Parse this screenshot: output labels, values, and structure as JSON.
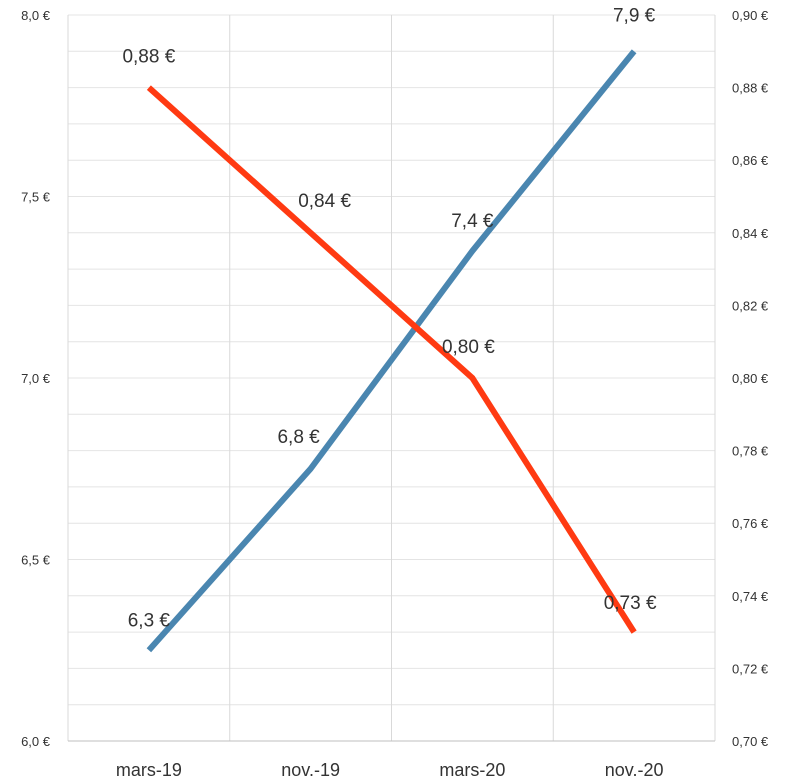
{
  "chart_data": {
    "type": "line",
    "title": "",
    "xlabel": "",
    "ylabel": "",
    "categories": [
      "mars-19",
      "nov.-19",
      "mars-20",
      "nov.-20"
    ],
    "y_left": {
      "range": [
        6.0,
        8.0
      ],
      "ticks": [
        6.0,
        6.5,
        7.0,
        7.5,
        8.0
      ],
      "tick_labels": [
        "6,0 €",
        "6,5 €",
        "7,0 €",
        "7,5 €",
        "8,0 €"
      ]
    },
    "y_right": {
      "range": [
        0.7,
        0.9
      ],
      "ticks": [
        0.7,
        0.72,
        0.74,
        0.76,
        0.78,
        0.8,
        0.82,
        0.84,
        0.86,
        0.88,
        0.9
      ],
      "tick_labels": [
        "0,70 €",
        "0,72 €",
        "0,74 €",
        "0,76 €",
        "0,78 €",
        "0,80 €",
        "0,82 €",
        "0,84 €",
        "0,86 €",
        "0,88 €",
        "0,90 €"
      ]
    },
    "series": [
      {
        "axis": "left",
        "color": "#4a86b0",
        "values": [
          6.25,
          6.75,
          7.35,
          7.9
        ],
        "labels": [
          "6,3 €",
          "6,8 €",
          "7,4 €",
          "7,9 €"
        ]
      },
      {
        "axis": "right",
        "color": "#ff3a12",
        "values": [
          0.88,
          0.84,
          0.8,
          0.73
        ],
        "labels": [
          "0,88 €",
          "0,84 €",
          "0,80 €",
          "0,73 €"
        ]
      }
    ],
    "grid": true,
    "legend": "none"
  }
}
